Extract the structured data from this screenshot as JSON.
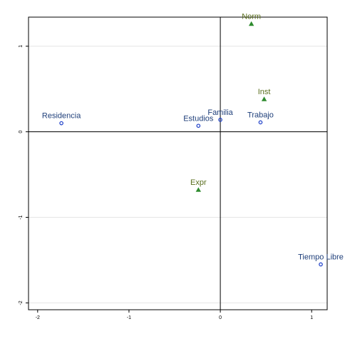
{
  "chart_data": {
    "type": "scatter",
    "title": "",
    "xlabel": "",
    "ylabel": "",
    "xlim": [
      -2.1,
      1.17
    ],
    "ylim": [
      -2.08,
      1.34
    ],
    "grid": true,
    "x_ticks": [
      -2,
      -1,
      0,
      1
    ],
    "x_tick_labels": [
      "-2",
      "-1",
      "0",
      "1"
    ],
    "y_ticks": [
      -2,
      -1,
      0,
      1
    ],
    "y_tick_labels": [
      "-2",
      "-1",
      "0",
      "1"
    ],
    "reference_lines": {
      "x": 0,
      "y": 0
    },
    "colors": {
      "circle": "#1a3cc8",
      "circle_label": "#1f3f7a",
      "triangle": "#2e8b2e",
      "triangle_label": "#5a6e1e"
    },
    "series": [
      {
        "marker": "circle",
        "points": [
          {
            "label": "Residencia",
            "x": -1.74,
            "y": 0.1
          },
          {
            "label": "Estudios",
            "x": -0.24,
            "y": 0.07
          },
          {
            "label": "Familia",
            "x": 0.0,
            "y": 0.14
          },
          {
            "label": "Trabajo",
            "x": 0.44,
            "y": 0.11
          },
          {
            "label": "Tiempo Libre",
            "x": 1.1,
            "y": -1.55
          }
        ]
      },
      {
        "marker": "triangle",
        "points": [
          {
            "label": "Norm",
            "x": 0.34,
            "y": 1.26
          },
          {
            "label": "Inst",
            "x": 0.48,
            "y": 0.38
          },
          {
            "label": "Expr",
            "x": -0.24,
            "y": -0.68
          }
        ]
      }
    ]
  }
}
